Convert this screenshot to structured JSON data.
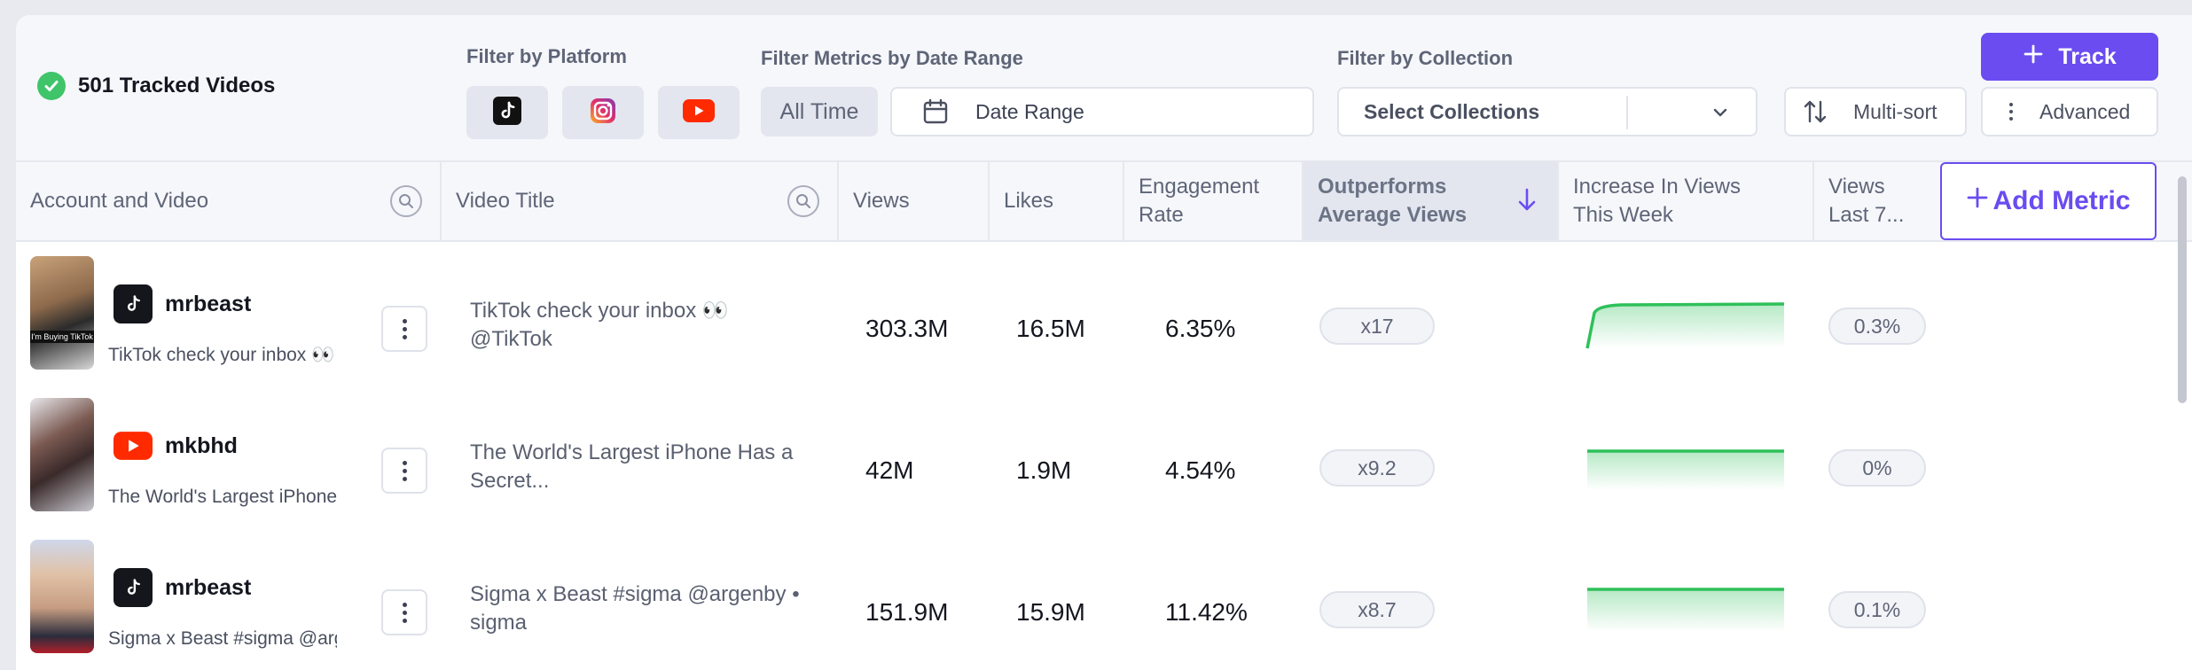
{
  "header": {
    "tracked_count_label": "501 Tracked Videos"
  },
  "filters": {
    "platform_label": "Filter by Platform",
    "date_label": "Filter Metrics by Date Range",
    "all_time": "All Time",
    "date_range_placeholder": "Date Range",
    "collection_label": "Filter by Collection",
    "collection_placeholder": "Select Collections",
    "multisort": "Multi-sort",
    "advanced": "Advanced",
    "track": "Track"
  },
  "table": {
    "columns": {
      "account": "Account and Video",
      "title": "Video Title",
      "views": "Views",
      "likes": "Likes",
      "engagement": "Engagement Rate",
      "outperforms": "Outperforms Average Views",
      "increase": "Increase In Views This Week",
      "views_last": "Views Last 7..."
    },
    "add_metric": "Add Metric",
    "rows": [
      {
        "account": "mrbeast",
        "platform": "tiktok-icon",
        "caption": "TikTok check your inbox 👀",
        "title": "TikTok check your inbox 👀 @TikTok",
        "views": "303.3M",
        "likes": "16.5M",
        "engagement": "6.35%",
        "outperforms": "x17",
        "views_last": "0.3%",
        "thumb_text": "I'm Buying TikTok"
      },
      {
        "account": "mkbhd",
        "platform": "youtube-icon",
        "caption": "The World's Largest iPhone Has a Secret...",
        "title": "The World's Largest iPhone Has a Secret...",
        "views": "42M",
        "likes": "1.9M",
        "engagement": "4.54%",
        "outperforms": "x9.2",
        "views_last": "0%"
      },
      {
        "account": "mrbeast",
        "platform": "tiktok-icon",
        "caption": "Sigma x Beast #sigma @argenby • sigma",
        "title": "Sigma x Beast #sigma @argenby • sigma",
        "views": "151.9M",
        "likes": "15.9M",
        "engagement": "11.42%",
        "outperforms": "x8.7",
        "views_last": "0.1%"
      }
    ]
  },
  "colors": {
    "accent": "#6a4cf0",
    "success": "#3fc46a",
    "spark_line": "#2ec05a"
  }
}
